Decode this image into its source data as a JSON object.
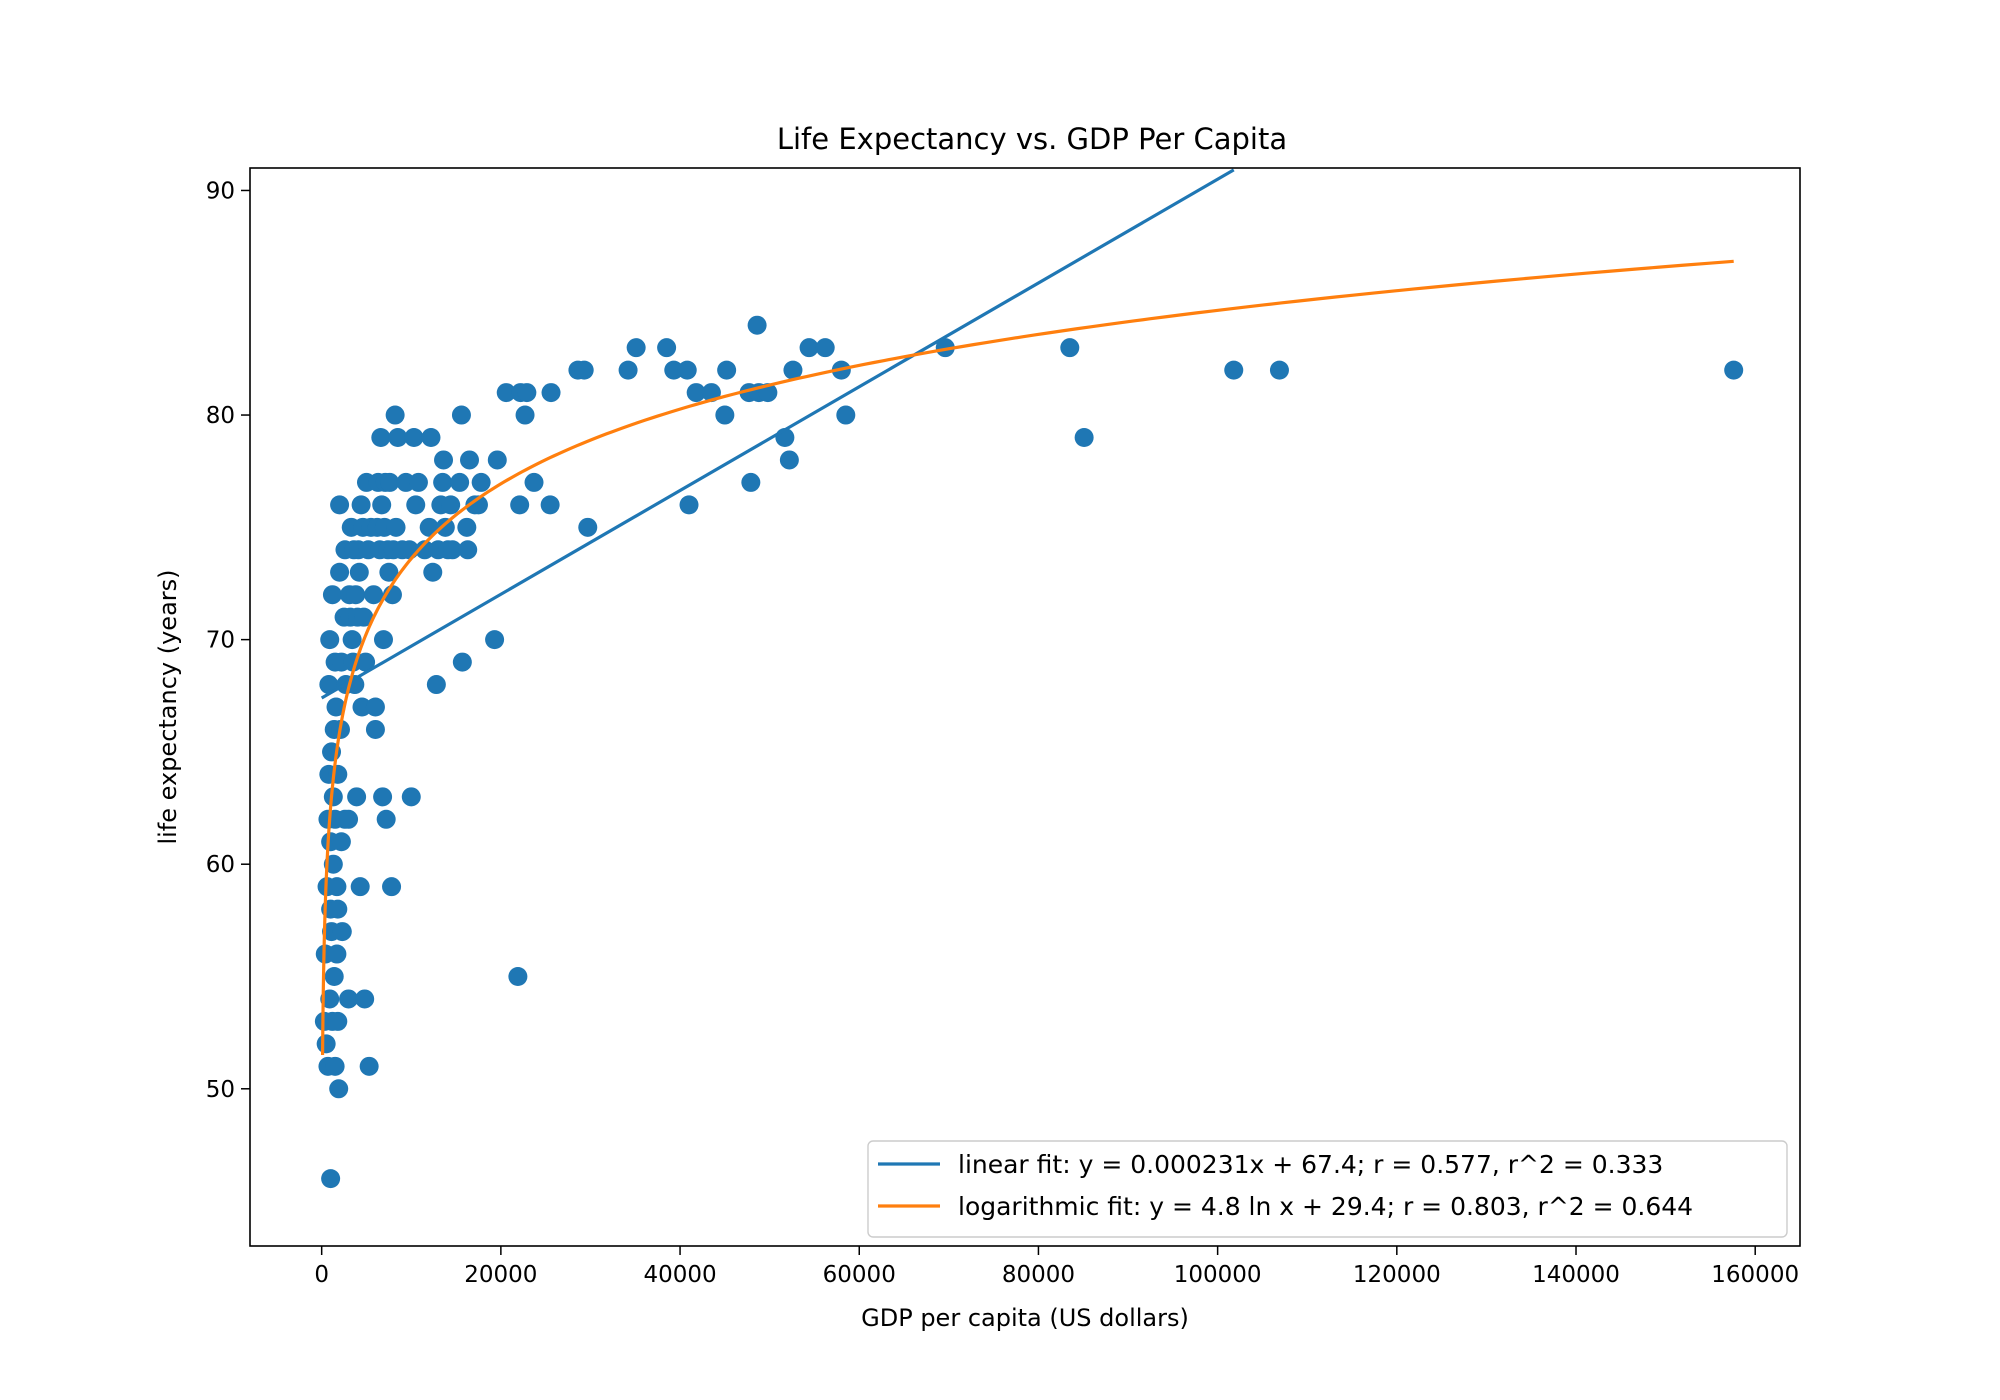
{
  "chart_data": {
    "type": "scatter",
    "title": "Life Expectancy vs. GDP Per Capita",
    "xlabel": "GDP per capita (US dollars)",
    "ylabel": "life expectancy (years)",
    "xlim": [
      -8000,
      165000
    ],
    "ylim": [
      43,
      91
    ],
    "xticks": [
      0,
      20000,
      40000,
      60000,
      80000,
      100000,
      120000,
      140000,
      160000
    ],
    "yticks": [
      50,
      60,
      70,
      80,
      90
    ],
    "grid": false,
    "legend_position": "lower-right",
    "colors": {
      "points": "#1f77b4",
      "linear": "#1f77b4",
      "log": "#ff7f0e"
    },
    "series": [
      {
        "kind": "points",
        "points": [
          [
            300,
            53
          ],
          [
            400,
            56
          ],
          [
            500,
            52
          ],
          [
            600,
            59
          ],
          [
            700,
            62
          ],
          [
            700,
            51
          ],
          [
            800,
            64
          ],
          [
            800,
            68
          ],
          [
            900,
            70
          ],
          [
            900,
            54
          ],
          [
            1000,
            46
          ],
          [
            1000,
            58
          ],
          [
            1000,
            61
          ],
          [
            1100,
            65
          ],
          [
            1100,
            57
          ],
          [
            1200,
            72
          ],
          [
            1200,
            53
          ],
          [
            1300,
            63
          ],
          [
            1300,
            60
          ],
          [
            1400,
            66
          ],
          [
            1400,
            55
          ],
          [
            1500,
            69
          ],
          [
            1500,
            62
          ],
          [
            1500,
            51
          ],
          [
            1600,
            67
          ],
          [
            1700,
            56
          ],
          [
            1700,
            59
          ],
          [
            1800,
            64
          ],
          [
            1800,
            58
          ],
          [
            1800,
            53
          ],
          [
            1900,
            50
          ],
          [
            2000,
            76
          ],
          [
            2000,
            73
          ],
          [
            2100,
            66
          ],
          [
            2200,
            69
          ],
          [
            2200,
            61
          ],
          [
            2300,
            57
          ],
          [
            2500,
            71
          ],
          [
            2600,
            74
          ],
          [
            2600,
            62
          ],
          [
            2700,
            68
          ],
          [
            3000,
            62
          ],
          [
            3000,
            54
          ],
          [
            3100,
            72
          ],
          [
            3200,
            71
          ],
          [
            3300,
            75
          ],
          [
            3400,
            70
          ],
          [
            3500,
            69
          ],
          [
            3600,
            74
          ],
          [
            3700,
            68
          ],
          [
            3800,
            72
          ],
          [
            3900,
            63
          ],
          [
            4000,
            71
          ],
          [
            4100,
            74
          ],
          [
            4200,
            73
          ],
          [
            4300,
            59
          ],
          [
            4400,
            76
          ],
          [
            4500,
            67
          ],
          [
            4600,
            75
          ],
          [
            4700,
            71
          ],
          [
            4800,
            54
          ],
          [
            4900,
            69
          ],
          [
            5000,
            77
          ],
          [
            5200,
            74
          ],
          [
            5300,
            51
          ],
          [
            5500,
            75
          ],
          [
            5800,
            72
          ],
          [
            6000,
            67
          ],
          [
            6000,
            66
          ],
          [
            6200,
            75
          ],
          [
            6300,
            77
          ],
          [
            6500,
            74
          ],
          [
            6600,
            79
          ],
          [
            6700,
            76
          ],
          [
            6800,
            63
          ],
          [
            6900,
            70
          ],
          [
            7000,
            75
          ],
          [
            7100,
            77
          ],
          [
            7200,
            62
          ],
          [
            7400,
            74
          ],
          [
            7500,
            73
          ],
          [
            7600,
            77
          ],
          [
            7800,
            59
          ],
          [
            7900,
            72
          ],
          [
            8000,
            74
          ],
          [
            8200,
            80
          ],
          [
            8300,
            75
          ],
          [
            8500,
            79
          ],
          [
            9000,
            74
          ],
          [
            9400,
            77
          ],
          [
            9800,
            74
          ],
          [
            10000,
            63
          ],
          [
            10300,
            79
          ],
          [
            10500,
            76
          ],
          [
            10800,
            77
          ],
          [
            11500,
            74
          ],
          [
            12000,
            75
          ],
          [
            12200,
            79
          ],
          [
            12400,
            73
          ],
          [
            12800,
            68
          ],
          [
            13000,
            74
          ],
          [
            13300,
            76
          ],
          [
            13500,
            77
          ],
          [
            13600,
            78
          ],
          [
            13800,
            75
          ],
          [
            14100,
            74
          ],
          [
            14400,
            76
          ],
          [
            14600,
            74
          ],
          [
            15400,
            77
          ],
          [
            15600,
            80
          ],
          [
            15700,
            69
          ],
          [
            16200,
            75
          ],
          [
            16300,
            74
          ],
          [
            16500,
            78
          ],
          [
            17100,
            76
          ],
          [
            17800,
            77
          ],
          [
            17500,
            76
          ],
          [
            19300,
            70
          ],
          [
            19600,
            78
          ],
          [
            20600,
            81
          ],
          [
            21900,
            55
          ],
          [
            22100,
            76
          ],
          [
            22200,
            81
          ],
          [
            22700,
            80
          ],
          [
            22900,
            81
          ],
          [
            23700,
            77
          ],
          [
            25500,
            76
          ],
          [
            25600,
            81
          ],
          [
            28600,
            82
          ],
          [
            29300,
            82
          ],
          [
            29700,
            75
          ],
          [
            34200,
            82
          ],
          [
            35100,
            83
          ],
          [
            38500,
            83
          ],
          [
            39300,
            82
          ],
          [
            40800,
            82
          ],
          [
            41000,
            76
          ],
          [
            41800,
            81
          ],
          [
            43500,
            81
          ],
          [
            45000,
            80
          ],
          [
            45200,
            82
          ],
          [
            47700,
            81
          ],
          [
            47900,
            77
          ],
          [
            48600,
            84
          ],
          [
            48800,
            81
          ],
          [
            49800,
            81
          ],
          [
            51700,
            79
          ],
          [
            52200,
            78
          ],
          [
            52600,
            82
          ],
          [
            54400,
            83
          ],
          [
            56200,
            83
          ],
          [
            58000,
            82
          ],
          [
            58500,
            80
          ],
          [
            69600,
            83
          ],
          [
            83500,
            83
          ],
          [
            85100,
            79
          ],
          [
            101800,
            82
          ],
          [
            106900,
            82
          ],
          [
            157600,
            82
          ]
        ]
      },
      {
        "kind": "fit",
        "model": "linear",
        "name": "linear fit: y = 0.000231x + 67.4; r = 0.577, r^2 = 0.333",
        "slope": 0.000231,
        "intercept": 67.4,
        "x_range": [
          0,
          101800
        ]
      },
      {
        "kind": "fit",
        "model": "logarithmic",
        "name": "logarithmic fit: y = 4.8 ln x + 29.4; r = 0.803, r^2 = 0.644",
        "coef": 4.8,
        "intercept": 29.4,
        "x_range": [
          100,
          157600
        ]
      }
    ]
  }
}
